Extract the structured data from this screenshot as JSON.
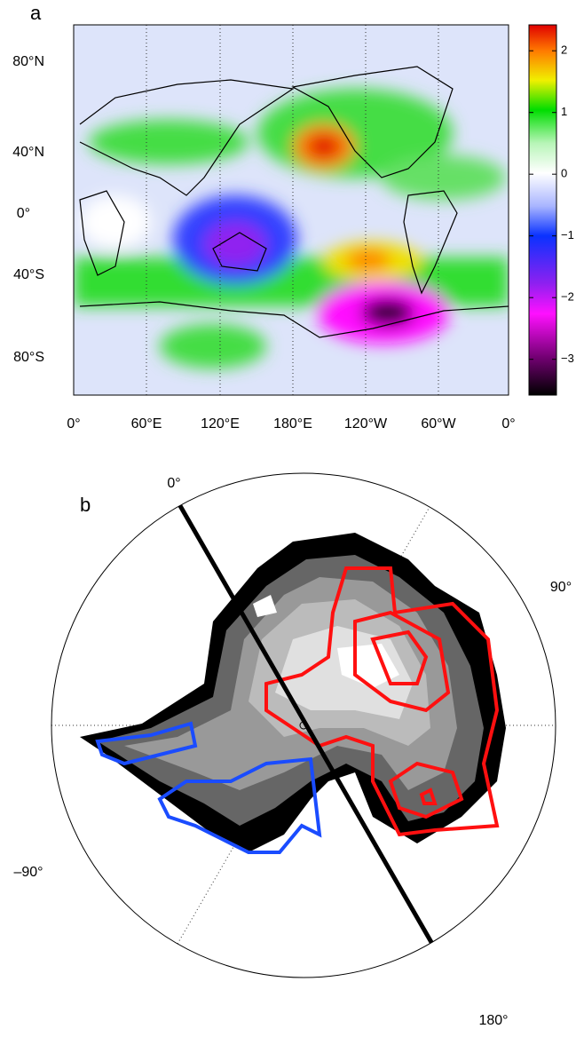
{
  "panel_a": {
    "label": "a",
    "y_tick_labels": [
      "80°N",
      "40°N",
      "0°",
      "40°S",
      "80°S"
    ],
    "x_tick_labels": [
      "0°",
      "60°E",
      "120°E",
      "180°E",
      "120°W",
      "60°W",
      "0°"
    ],
    "colorbar": {
      "lim": [
        -3.58,
        2.42
      ],
      "ticks": [
        2,
        1,
        0,
        {
          "value": -1,
          "label": "−1"
        },
        {
          "value": -2,
          "label": "−2"
        },
        {
          "value": -3,
          "label": "−3"
        }
      ]
    }
  },
  "panel_b": {
    "label": "b",
    "angle_labels": [
      "0°",
      "90°",
      "–90°",
      "180°"
    ]
  }
}
